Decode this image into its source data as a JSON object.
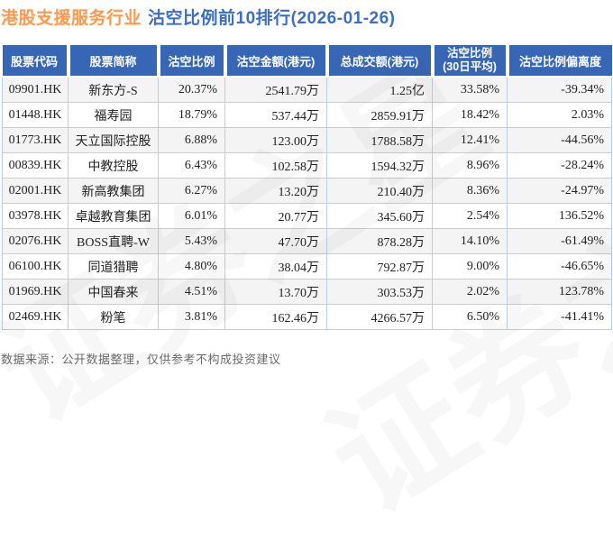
{
  "title": {
    "industry": "港股支援服务行业",
    "ranking": "沽空比例前10排行(2026-01-26)"
  },
  "chart_data": {
    "type": "table",
    "title": "港股支援服务行业 沽空比例前10排行(2026-01-26)",
    "columns": [
      "股票代码",
      "股票简称",
      "沽空比例",
      "沽空金额(港元)",
      "总成交额(港元)",
      "沽空比例\n(30日平均)",
      "沽空比例偏离度"
    ],
    "rows": [
      [
        "09901.HK",
        "新东方-S",
        "20.37%",
        "2541.79万",
        "1.25亿",
        "33.58%",
        "-39.34%"
      ],
      [
        "01448.HK",
        "福寿园",
        "18.79%",
        "537.44万",
        "2859.91万",
        "18.42%",
        "2.03%"
      ],
      [
        "01773.HK",
        "天立国际控股",
        "6.88%",
        "123.00万",
        "1788.58万",
        "12.41%",
        "-44.56%"
      ],
      [
        "00839.HK",
        "中教控股",
        "6.43%",
        "102.58万",
        "1594.32万",
        "8.96%",
        "-28.24%"
      ],
      [
        "02001.HK",
        "新高教集团",
        "6.27%",
        "13.20万",
        "210.40万",
        "8.36%",
        "-24.97%"
      ],
      [
        "03978.HK",
        "卓越教育集团",
        "6.01%",
        "20.77万",
        "345.60万",
        "2.54%",
        "136.52%"
      ],
      [
        "02076.HK",
        "BOSS直聘-W",
        "5.43%",
        "47.70万",
        "878.28万",
        "14.10%",
        "-61.49%"
      ],
      [
        "06100.HK",
        "同道猎聘",
        "4.80%",
        "38.04万",
        "792.87万",
        "9.00%",
        "-46.65%"
      ],
      [
        "01969.HK",
        "中国春来",
        "4.51%",
        "13.70万",
        "303.53万",
        "2.02%",
        "123.78%"
      ],
      [
        "02469.HK",
        "粉笔",
        "3.81%",
        "162.46万",
        "4266.57万",
        "6.50%",
        "-41.41%"
      ]
    ]
  },
  "footer": {
    "note": "数据来源：公开数据整理，仅供参考不构成投资建议"
  },
  "watermark": {
    "text": "证券之星"
  },
  "colors": {
    "header_bg": "#3766b4",
    "title_orange": "#f99a4e",
    "title_blue": "#3c6fc4",
    "cell_border": "#b9cfe9",
    "alt_row": "#f4f4f4"
  }
}
